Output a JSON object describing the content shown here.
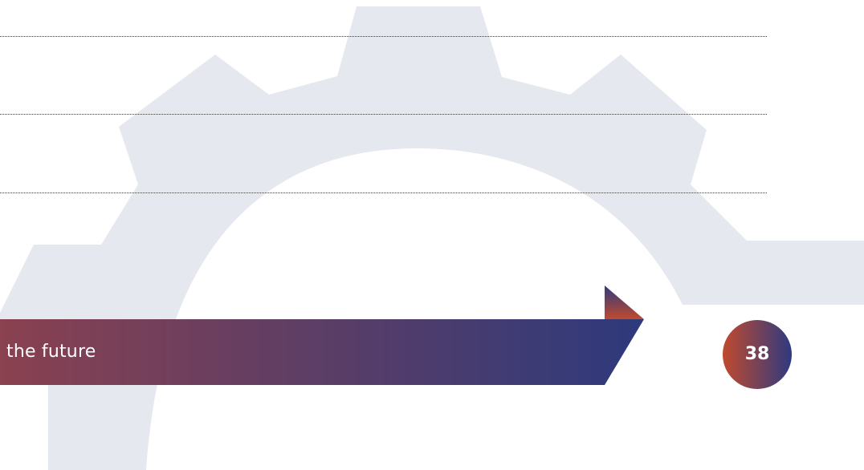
{
  "banner": {
    "text": "the future"
  },
  "page": {
    "number": "38"
  },
  "colors": {
    "gear": "#e6e8f0",
    "banner_start": "#8a4150",
    "banner_end": "#2d3a7c",
    "badge_start": "#c04a2e",
    "badge_end": "#2e3a80",
    "text": "#ffffff",
    "rule": "#3a3a3a"
  },
  "icons": {
    "gear": "gear-icon",
    "arrow": "arrow-icon"
  }
}
